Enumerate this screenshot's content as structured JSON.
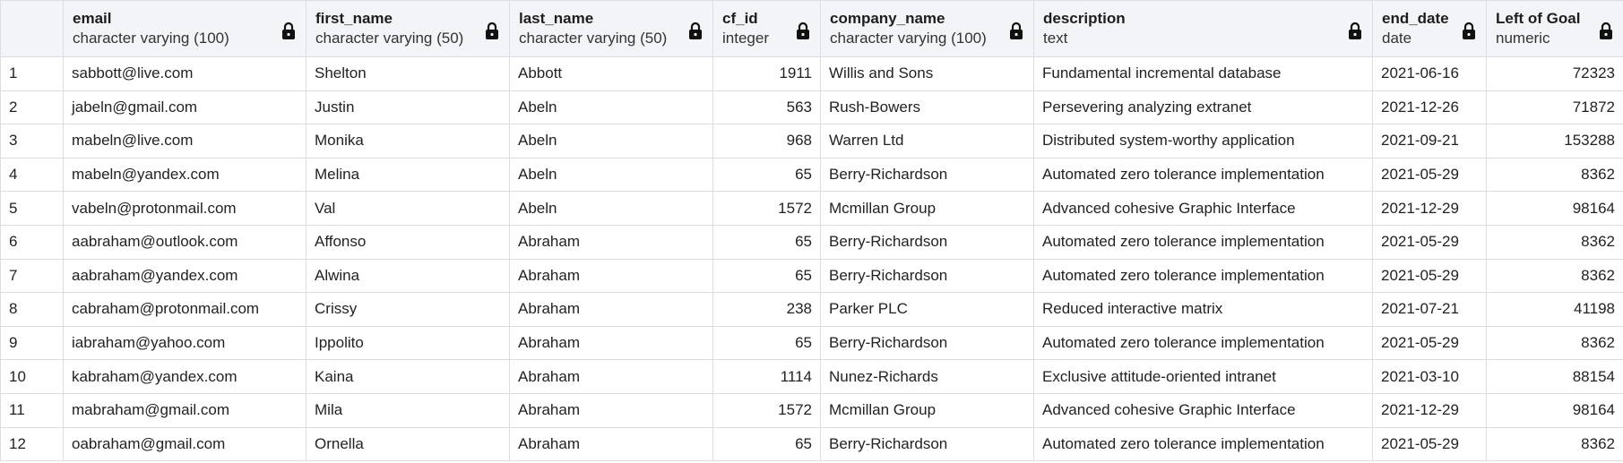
{
  "columns": [
    {
      "name": "email",
      "type": "character varying (100)"
    },
    {
      "name": "first_name",
      "type": "character varying (50)"
    },
    {
      "name": "last_name",
      "type": "character varying (50)"
    },
    {
      "name": "cf_id",
      "type": "integer"
    },
    {
      "name": "company_name",
      "type": "character varying (100)"
    },
    {
      "name": "description",
      "type": "text"
    },
    {
      "name": "end_date",
      "type": "date"
    },
    {
      "name": "left_of_goal",
      "label": "Left of Goal",
      "type": "numeric"
    }
  ],
  "rows": [
    {
      "n": "1",
      "email": "sabbott@live.com",
      "first_name": "Shelton",
      "last_name": "Abbott",
      "cf_id": "1911",
      "company_name": "Willis and Sons",
      "description": "Fundamental incremental database",
      "end_date": "2021-06-16",
      "left_of_goal": "72323"
    },
    {
      "n": "2",
      "email": "jabeln@gmail.com",
      "first_name": "Justin",
      "last_name": "Abeln",
      "cf_id": "563",
      "company_name": "Rush-Bowers",
      "description": "Persevering analyzing extranet",
      "end_date": "2021-12-26",
      "left_of_goal": "71872"
    },
    {
      "n": "3",
      "email": "mabeln@live.com",
      "first_name": "Monika",
      "last_name": "Abeln",
      "cf_id": "968",
      "company_name": "Warren Ltd",
      "description": "Distributed system-worthy application",
      "end_date": "2021-09-21",
      "left_of_goal": "153288"
    },
    {
      "n": "4",
      "email": "mabeln@yandex.com",
      "first_name": "Melina",
      "last_name": "Abeln",
      "cf_id": "65",
      "company_name": "Berry-Richardson",
      "description": "Automated zero tolerance implementation",
      "end_date": "2021-05-29",
      "left_of_goal": "8362"
    },
    {
      "n": "5",
      "email": "vabeln@protonmail.com",
      "first_name": "Val",
      "last_name": "Abeln",
      "cf_id": "1572",
      "company_name": "Mcmillan Group",
      "description": "Advanced cohesive Graphic Interface",
      "end_date": "2021-12-29",
      "left_of_goal": "98164"
    },
    {
      "n": "6",
      "email": "aabraham@outlook.com",
      "first_name": "Affonso",
      "last_name": "Abraham",
      "cf_id": "65",
      "company_name": "Berry-Richardson",
      "description": "Automated zero tolerance implementation",
      "end_date": "2021-05-29",
      "left_of_goal": "8362"
    },
    {
      "n": "7",
      "email": "aabraham@yandex.com",
      "first_name": "Alwina",
      "last_name": "Abraham",
      "cf_id": "65",
      "company_name": "Berry-Richardson",
      "description": "Automated zero tolerance implementation",
      "end_date": "2021-05-29",
      "left_of_goal": "8362"
    },
    {
      "n": "8",
      "email": "cabraham@protonmail.com",
      "first_name": "Crissy",
      "last_name": "Abraham",
      "cf_id": "238",
      "company_name": "Parker PLC",
      "description": "Reduced interactive matrix",
      "end_date": "2021-07-21",
      "left_of_goal": "41198"
    },
    {
      "n": "9",
      "email": "iabraham@yahoo.com",
      "first_name": "Ippolito",
      "last_name": "Abraham",
      "cf_id": "65",
      "company_name": "Berry-Richardson",
      "description": "Automated zero tolerance implementation",
      "end_date": "2021-05-29",
      "left_of_goal": "8362"
    },
    {
      "n": "10",
      "email": "kabraham@yandex.com",
      "first_name": "Kaina",
      "last_name": "Abraham",
      "cf_id": "1114",
      "company_name": "Nunez-Richards",
      "description": "Exclusive attitude-oriented intranet",
      "end_date": "2021-03-10",
      "left_of_goal": "88154"
    },
    {
      "n": "11",
      "email": "mabraham@gmail.com",
      "first_name": "Mila",
      "last_name": "Abraham",
      "cf_id": "1572",
      "company_name": "Mcmillan Group",
      "description": "Advanced cohesive Graphic Interface",
      "end_date": "2021-12-29",
      "left_of_goal": "98164"
    },
    {
      "n": "12",
      "email": "oabraham@gmail.com",
      "first_name": "Ornella",
      "last_name": "Abraham",
      "cf_id": "65",
      "company_name": "Berry-Richardson",
      "description": "Automated zero tolerance implementation",
      "end_date": "2021-05-29",
      "left_of_goal": "8362"
    }
  ],
  "colors": {
    "header_bg": "#f3f4f7",
    "grid_line": "#dcdde3",
    "text": "#222222"
  },
  "icons": {
    "column_lock": "lock-icon"
  }
}
